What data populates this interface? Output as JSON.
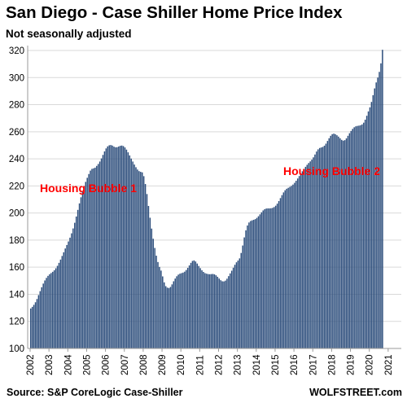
{
  "chart_data": {
    "type": "bar",
    "title": "San Diego - Case Shiller Home Price Index",
    "subtitle": "Not seasonally adjusted",
    "xlabel": "",
    "ylabel": "",
    "ylim": [
      100,
      320
    ],
    "yticks": [
      100,
      120,
      140,
      160,
      180,
      200,
      220,
      240,
      260,
      280,
      300,
      320
    ],
    "xticks": [
      "2002",
      "2003",
      "2004",
      "2005",
      "2006",
      "2007",
      "2008",
      "2009",
      "2010",
      "2011",
      "2012",
      "2013",
      "2014",
      "2015",
      "2016",
      "2017",
      "2018",
      "2019",
      "2020",
      "2021"
    ],
    "frequency": "monthly",
    "x_start": "2002-01",
    "x_end": "2021-03",
    "values": [
      129.5,
      130.7,
      132.2,
      134.1,
      136.5,
      139.4,
      142.3,
      145.2,
      147.9,
      150.2,
      152.1,
      153.6,
      154.8,
      155.7,
      156.6,
      157.7,
      159.2,
      161.0,
      163.2,
      165.6,
      168.3,
      171.0,
      173.8,
      176.4,
      179.0,
      181.8,
      185.0,
      188.6,
      192.8,
      197.4,
      202.3,
      207.1,
      211.6,
      215.8,
      219.6,
      223.0,
      226.0,
      228.8,
      231.3,
      232.6,
      233.0,
      233.5,
      234.8,
      236.2,
      238.0,
      240.3,
      242.9,
      245.5,
      247.7,
      249.2,
      250.0,
      250.2,
      249.8,
      249.0,
      248.5,
      248.6,
      249.1,
      249.6,
      249.8,
      249.4,
      248.4,
      246.8,
      244.8,
      242.5,
      240.2,
      238.0,
      235.8,
      233.8,
      232.1,
      230.9,
      230.4,
      230.0,
      227.2,
      221.4,
      214.0,
      205.2,
      196.5,
      188.5,
      181.0,
      174.2,
      168.5,
      163.8,
      160.2,
      157.5,
      153.2,
      148.8,
      146.0,
      144.9,
      144.6,
      145.4,
      147.3,
      149.6,
      151.6,
      153.3,
      154.5,
      155.2,
      155.6,
      156.0,
      156.7,
      157.9,
      159.5,
      161.3,
      163.2,
      164.6,
      165.0,
      164.2,
      162.7,
      160.9,
      159.3,
      157.7,
      156.5,
      155.6,
      155.2,
      154.9,
      154.8,
      154.9,
      155.0,
      154.7,
      154.0,
      152.9,
      151.6,
      150.4,
      149.6,
      149.5,
      150.1,
      151.5,
      153.4,
      155.4,
      157.4,
      159.6,
      161.8,
      163.6,
      164.9,
      166.5,
      170.5,
      176.0,
      182.0,
      187.2,
      190.8,
      193.0,
      194.1,
      194.6,
      195.0,
      195.5,
      196.4,
      197.6,
      199.0,
      200.5,
      201.9,
      202.8,
      203.3,
      203.4,
      203.4,
      203.5,
      203.8,
      204.4,
      205.4,
      206.9,
      208.8,
      211.0,
      213.2,
      215.2,
      216.8,
      217.9,
      218.6,
      219.3,
      220.0,
      221.0,
      222.3,
      223.8,
      225.5,
      227.3,
      229.1,
      230.8,
      232.5,
      234.1,
      235.6,
      236.9,
      238.1,
      239.4,
      241.1,
      243.2,
      245.4,
      247.0,
      248.0,
      248.4,
      248.8,
      249.7,
      251.2,
      253.2,
      255.2,
      257.0,
      258.2,
      258.6,
      258.2,
      257.4,
      256.4,
      255.2,
      254.0,
      253.4,
      253.8,
      255.1,
      257.0,
      258.9,
      260.6,
      262.1,
      263.3,
      264.0,
      264.3,
      264.5,
      264.8,
      265.4,
      266.7,
      268.9,
      271.8,
      275.0,
      278.0,
      282.0,
      287.0,
      292.0,
      296.4,
      300.0,
      304.2,
      310.5,
      320.5
    ],
    "color": "#2d4e7c",
    "annotations": [
      {
        "text": "Housing Bubble 1",
        "color": "#ff0000"
      },
      {
        "text": "Housing Bubble 2",
        "color": "#ff0000"
      }
    ],
    "source": "Source: S&P CoreLogic Case-Shiller",
    "watermark": "WOLFSTREET.com"
  }
}
